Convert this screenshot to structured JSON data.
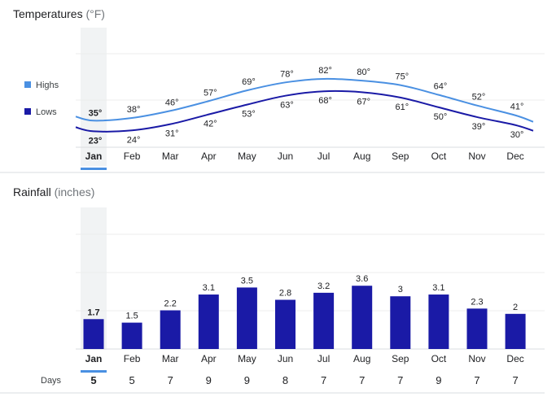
{
  "chart_data": [
    {
      "type": "line",
      "title": "Temperatures",
      "unit": "(°F)",
      "categories": [
        "Jan",
        "Feb",
        "Mar",
        "Apr",
        "May",
        "Jun",
        "Jul",
        "Aug",
        "Sep",
        "Oct",
        "Nov",
        "Dec"
      ],
      "series": [
        {
          "name": "Highs",
          "color": "#4a90e2",
          "values": [
            35,
            38,
            46,
            57,
            69,
            78,
            82,
            80,
            75,
            64,
            52,
            41
          ]
        },
        {
          "name": "Lows",
          "color": "#1a1aa6",
          "values": [
            23,
            24,
            31,
            42,
            53,
            63,
            68,
            67,
            61,
            50,
            39,
            30
          ]
        }
      ],
      "selected_category": "Jan",
      "legend_position": "left"
    },
    {
      "type": "bar",
      "title": "Rainfall",
      "unit": "(inches)",
      "categories": [
        "Jan",
        "Feb",
        "Mar",
        "Apr",
        "May",
        "Jun",
        "Jul",
        "Aug",
        "Sep",
        "Oct",
        "Nov",
        "Dec"
      ],
      "values": [
        1.7,
        1.5,
        2.2,
        3.1,
        3.5,
        2.8,
        3.2,
        3.6,
        3,
        3.1,
        2.3,
        2
      ],
      "value_labels": [
        "1.7",
        "1.5",
        "2.2",
        "3.1",
        "3.5",
        "2.8",
        "3.2",
        "3.6",
        "3",
        "3.1",
        "2.3",
        "2"
      ],
      "bar_color": "#1a1aa6",
      "selected_category": "Jan",
      "days_label": "Days",
      "days": [
        5,
        5,
        7,
        9,
        9,
        8,
        7,
        7,
        7,
        9,
        7,
        7
      ]
    }
  ]
}
